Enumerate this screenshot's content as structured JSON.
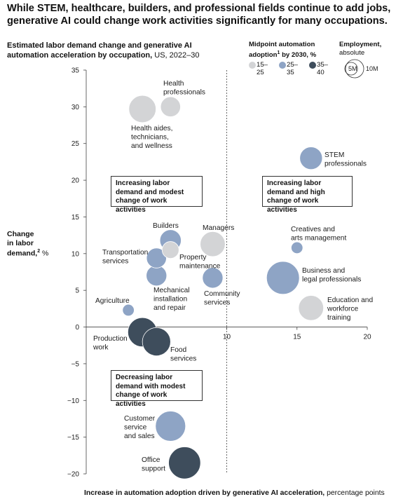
{
  "headline": "While STEM, healthcare, builders, and professional fields continue to add jobs, generative AI could change work activities significantly for many occupations.",
  "subtitle_bold": "Estimated labor demand change and generative AI automation acceleration by occupation,",
  "subtitle_rest": " US, 2022–30",
  "legend_color": {
    "title": "Midpoint automation adoption",
    "title_sup": "1",
    "title_tail": " by 2030, %",
    "items": [
      {
        "label": "15–\n25",
        "color": "#d3d4d6"
      },
      {
        "label": "25–\n35",
        "color": "#8ea4c5"
      },
      {
        "label": "35–\n40",
        "color": "#3e4d5c"
      }
    ]
  },
  "legend_size": {
    "title": "Employment,",
    "subtitle": "absolute",
    "small_label": "5M",
    "large_label": "10M"
  },
  "y_axis_label": {
    "line1": "Change",
    "line2": "in labor",
    "line3": "demand,",
    "sup": "2",
    "unit": " %"
  },
  "x_axis_label": {
    "bold": "Increase in automation adoption driven by generative AI acceleration,",
    "rest": " percentage points"
  },
  "quadrants": [
    {
      "text": "Increasing labor demand and modest change of work activities"
    },
    {
      "text": "Increasing labor demand and high change of work activities"
    },
    {
      "text": "Decreasing labor demand with modest change of work activities"
    }
  ],
  "chart_data": {
    "type": "scatter",
    "title": "Estimated labor demand change and generative AI automation acceleration by occupation, US, 2022–30",
    "xlabel": "Increase in automation adoption driven by generative AI acceleration, percentage points",
    "ylabel": "Change in labor demand, %",
    "xlim": [
      0,
      20
    ],
    "ylim": [
      -20,
      35
    ],
    "x_ticks": [
      10,
      15,
      20
    ],
    "y_ticks": [
      35,
      30,
      25,
      20,
      15,
      10,
      5,
      0,
      -5,
      -10,
      -15,
      -20
    ],
    "x_tick_labels": [
      "10",
      "15",
      "20"
    ],
    "y_tick_labels": [
      "35",
      "30",
      "25",
      "20",
      "15",
      "10",
      "5",
      "0",
      "−5",
      "−10",
      "−15",
      "−20"
    ],
    "reference_line_x": 10,
    "size_variable": "Employment, absolute (millions)",
    "color_variable": "Midpoint automation adoption by 2030, %",
    "points": [
      {
        "name": "Health professionals",
        "x": 6.0,
        "y": 30.0,
        "size_m": 3.5,
        "group": "15–25"
      },
      {
        "name": "Health aides, technicians, and wellness",
        "x": 4.0,
        "y": 29.7,
        "size_m": 6.5,
        "group": "15–25"
      },
      {
        "name": "STEM professionals",
        "x": 16.0,
        "y": 23.0,
        "size_m": 4.5,
        "group": "25–35"
      },
      {
        "name": "Builders",
        "x": 6.0,
        "y": 11.8,
        "size_m": 4.0,
        "group": "25–35"
      },
      {
        "name": "Property maintenance",
        "x": 6.0,
        "y": 10.5,
        "size_m": 2.5,
        "group": "15–25"
      },
      {
        "name": "Managers",
        "x": 9.0,
        "y": 11.3,
        "size_m": 5.5,
        "group": "15–25"
      },
      {
        "name": "Creatives and arts management",
        "x": 15.0,
        "y": 10.8,
        "size_m": 1.2,
        "group": "25–35"
      },
      {
        "name": "Transportation services",
        "x": 5.0,
        "y": 9.4,
        "size_m": 3.5,
        "group": "25–35"
      },
      {
        "name": "Mechanical installation and repair",
        "x": 5.0,
        "y": 7.0,
        "size_m": 3.7,
        "group": "25–35"
      },
      {
        "name": "Community services",
        "x": 9.0,
        "y": 6.7,
        "size_m": 3.7,
        "group": "25–35"
      },
      {
        "name": "Business and legal professionals",
        "x": 14.0,
        "y": 6.7,
        "size_m": 9.5,
        "group": "25–35"
      },
      {
        "name": "Education and workforce training",
        "x": 16.0,
        "y": 2.6,
        "size_m": 5.5,
        "group": "15–25"
      },
      {
        "name": "Agriculture",
        "x": 3.0,
        "y": 2.3,
        "size_m": 1.2,
        "group": "25–35"
      },
      {
        "name": "Production work",
        "x": 4.0,
        "y": -0.7,
        "size_m": 7.5,
        "group": "35–40"
      },
      {
        "name": "Food services",
        "x": 5.0,
        "y": -2.0,
        "size_m": 7.0,
        "group": "35–40"
      },
      {
        "name": "Customer service and sales",
        "x": 6.0,
        "y": -13.5,
        "size_m": 8.0,
        "group": "25–35"
      },
      {
        "name": "Office support",
        "x": 7.0,
        "y": -18.5,
        "size_m": 9.0,
        "group": "35–40"
      }
    ]
  },
  "point_labels": [
    {
      "lines": [
        "Health",
        "professionals"
      ]
    },
    {
      "lines": [
        "Health aides,",
        "technicians,",
        "and wellness"
      ]
    },
    {
      "lines": [
        "STEM",
        "professionals"
      ]
    },
    {
      "lines": [
        "Builders"
      ]
    },
    {
      "lines": [
        "Property",
        "maintenance"
      ]
    },
    {
      "lines": [
        "Managers"
      ]
    },
    {
      "lines": [
        "Creatives and",
        "arts management"
      ]
    },
    {
      "lines": [
        "Transportation",
        "services"
      ]
    },
    {
      "lines": [
        "Mechanical",
        "installation",
        "and repair"
      ]
    },
    {
      "lines": [
        "Community",
        "services"
      ]
    },
    {
      "lines": [
        "Business and",
        "legal professionals"
      ]
    },
    {
      "lines": [
        "Education and",
        "workforce",
        "training"
      ]
    },
    {
      "lines": [
        "Agriculture"
      ]
    },
    {
      "lines": [
        "Production",
        "work"
      ]
    },
    {
      "lines": [
        "Food",
        "services"
      ]
    },
    {
      "lines": [
        "Customer",
        "service",
        "and sales"
      ]
    },
    {
      "lines": [
        "Office",
        "support"
      ]
    }
  ],
  "colors": {
    "15–25": "#d3d4d6",
    "25–35": "#8ea4c5",
    "35–40": "#3e4d5c",
    "axis": "#444444"
  }
}
